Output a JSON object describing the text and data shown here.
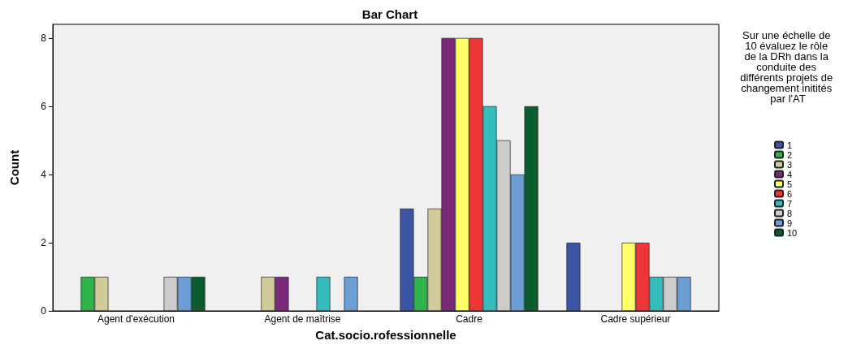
{
  "chart_data": {
    "type": "bar",
    "title": "Bar Chart",
    "xlabel": "Cat.socio.rofessionnelle",
    "ylabel": "Count",
    "legend_title": "Sur une échelle de 10 évaluez le rôle de la DRh dans la conduite des différents projets de changement initités par l'AT",
    "categories": [
      "Agent d'exécution",
      "Agent de maîtrise",
      "Cadre",
      "Cadre supérieur"
    ],
    "series": [
      {
        "name": "1",
        "color": "#3b54a4",
        "values": [
          null,
          null,
          3,
          2
        ]
      },
      {
        "name": "2",
        "color": "#2fb34a",
        "values": [
          1,
          null,
          1,
          null
        ]
      },
      {
        "name": "3",
        "color": "#d1cb9a",
        "values": [
          1,
          1,
          3,
          null
        ]
      },
      {
        "name": "4",
        "color": "#7b2a7a",
        "values": [
          null,
          1,
          8,
          null
        ]
      },
      {
        "name": "5",
        "color": "#ffff66",
        "values": [
          null,
          null,
          8,
          2
        ]
      },
      {
        "name": "6",
        "color": "#ee3636",
        "values": [
          null,
          null,
          8,
          2
        ]
      },
      {
        "name": "7",
        "color": "#35bdbd",
        "values": [
          null,
          1,
          6,
          1
        ]
      },
      {
        "name": "8",
        "color": "#cccccc",
        "values": [
          1,
          null,
          5,
          1
        ]
      },
      {
        "name": "9",
        "color": "#6c9fd6",
        "values": [
          1,
          1,
          4,
          1
        ]
      },
      {
        "name": "10",
        "color": "#0b5c2f",
        "values": [
          1,
          null,
          6,
          null
        ]
      }
    ],
    "ylim": [
      0,
      8.4
    ],
    "yticks": [
      0,
      2,
      4,
      6,
      8
    ],
    "grid": false,
    "legend": "right"
  }
}
